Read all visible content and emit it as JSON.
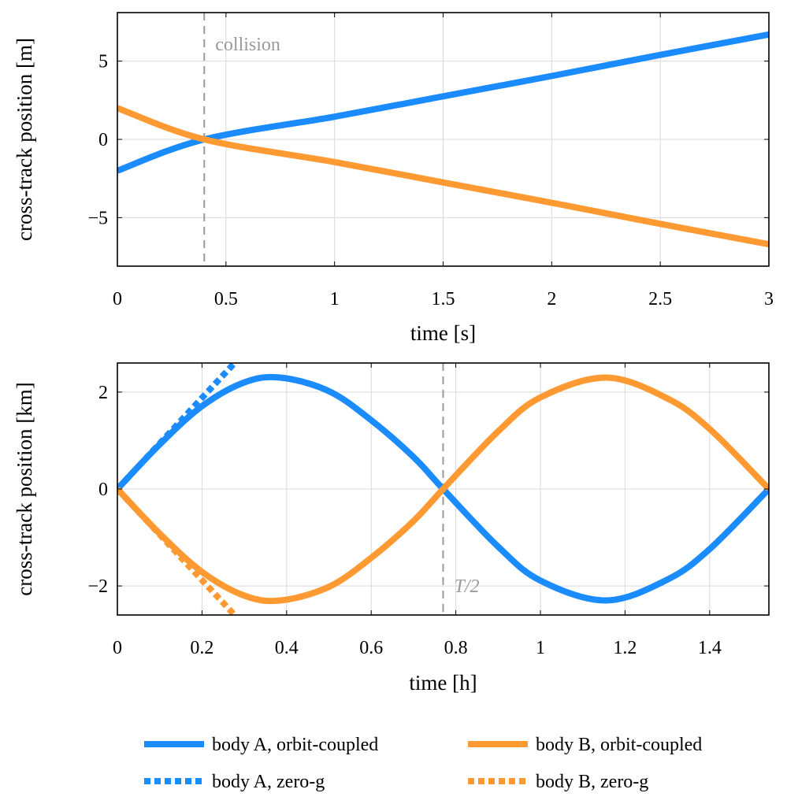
{
  "chart_data": [
    {
      "type": "line",
      "xlabel": "time [s]",
      "ylabel": "cross-track position [m]",
      "xlim": [
        0,
        3
      ],
      "ylim": [
        -8.1,
        8.1
      ],
      "xticks": [
        0,
        0.5,
        1,
        1.5,
        2,
        2.5,
        3
      ],
      "xtick_labels": [
        "0",
        "0.5",
        "1",
        "1.5",
        "2",
        "2.5",
        "3"
      ],
      "yticks": [
        -5,
        0,
        5
      ],
      "ytick_labels": [
        "−5",
        "0",
        "5"
      ],
      "grid": true,
      "series": [
        {
          "name": "body A, orbit-coupled",
          "style": "solid",
          "color": "#1a8cff",
          "x": [
            0,
            0.4,
            1,
            1.5,
            2,
            2.5,
            3
          ],
          "y": [
            -2.0,
            0.0,
            1.45,
            2.75,
            4.05,
            5.4,
            6.7
          ]
        },
        {
          "name": "body B, orbit-coupled",
          "style": "solid",
          "color": "#ff9a33",
          "x": [
            0,
            0.4,
            1,
            1.5,
            2,
            2.5,
            3
          ],
          "y": [
            2.0,
            0.0,
            -1.45,
            -2.75,
            -4.05,
            -5.4,
            -6.7
          ]
        }
      ],
      "annotations": [
        {
          "type": "vline",
          "x": 0.4,
          "label": "collision",
          "label_y": 6.1
        }
      ]
    },
    {
      "type": "line",
      "xlabel": "time [h]",
      "ylabel": "cross-track position [km]",
      "xlim": [
        0,
        1.54
      ],
      "ylim": [
        -2.6,
        2.6
      ],
      "xticks": [
        0,
        0.2,
        0.4,
        0.6,
        0.8,
        1,
        1.2,
        1.4
      ],
      "xtick_labels": [
        "0",
        "0.2",
        "0.4",
        "0.6",
        "0.8",
        "1",
        "1.2",
        "1.4"
      ],
      "yticks": [
        -2,
        0,
        2
      ],
      "ytick_labels": [
        "−2",
        "0",
        "2"
      ],
      "grid": true,
      "series": [
        {
          "name": "body A, orbit-coupled",
          "style": "solid",
          "color": "#1a8cff",
          "x": [
            0,
            0.1,
            0.2,
            0.3,
            0.385,
            0.5,
            0.6,
            0.7,
            0.77,
            0.9,
            1.0,
            1.155,
            1.3,
            1.4,
            1.54
          ],
          "y": [
            0,
            0.92,
            1.71,
            2.2,
            2.3,
            2.02,
            1.42,
            0.66,
            0,
            -1.19,
            -1.89,
            -2.3,
            -1.87,
            -1.24,
            0
          ]
        },
        {
          "name": "body B, orbit-coupled",
          "style": "solid",
          "color": "#ff9a33",
          "x": [
            0,
            0.1,
            0.2,
            0.3,
            0.385,
            0.5,
            0.6,
            0.7,
            0.77,
            0.9,
            1.0,
            1.155,
            1.3,
            1.4,
            1.54
          ],
          "y": [
            0,
            -0.92,
            -1.71,
            -2.2,
            -2.3,
            -2.02,
            -1.42,
            -0.66,
            0,
            1.19,
            1.89,
            2.3,
            1.87,
            1.24,
            0
          ]
        },
        {
          "name": "body A, zero-g",
          "style": "dotted",
          "color": "#1a8cff",
          "x": [
            0,
            0.1,
            0.2,
            0.28
          ],
          "y": [
            0,
            0.94,
            1.88,
            2.63
          ]
        },
        {
          "name": "body B, zero-g",
          "style": "dotted",
          "color": "#ff9a33",
          "x": [
            0,
            0.1,
            0.2,
            0.28
          ],
          "y": [
            0,
            -0.94,
            -1.88,
            -2.63
          ]
        }
      ],
      "annotations": [
        {
          "type": "vline",
          "x": 0.77,
          "label": "T/2",
          "label_y": -2.0
        }
      ]
    }
  ],
  "legend": {
    "placement": "bottom",
    "entries": [
      {
        "label": "body A, orbit-coupled",
        "color": "#1a8cff",
        "style": "solid"
      },
      {
        "label": "body B, orbit-coupled",
        "color": "#ff9a33",
        "style": "solid"
      },
      {
        "label": "body A, zero-g",
        "color": "#1a8cff",
        "style": "dotted"
      },
      {
        "label": "body B, zero-g",
        "color": "#ff9a33",
        "style": "dotted"
      }
    ]
  }
}
